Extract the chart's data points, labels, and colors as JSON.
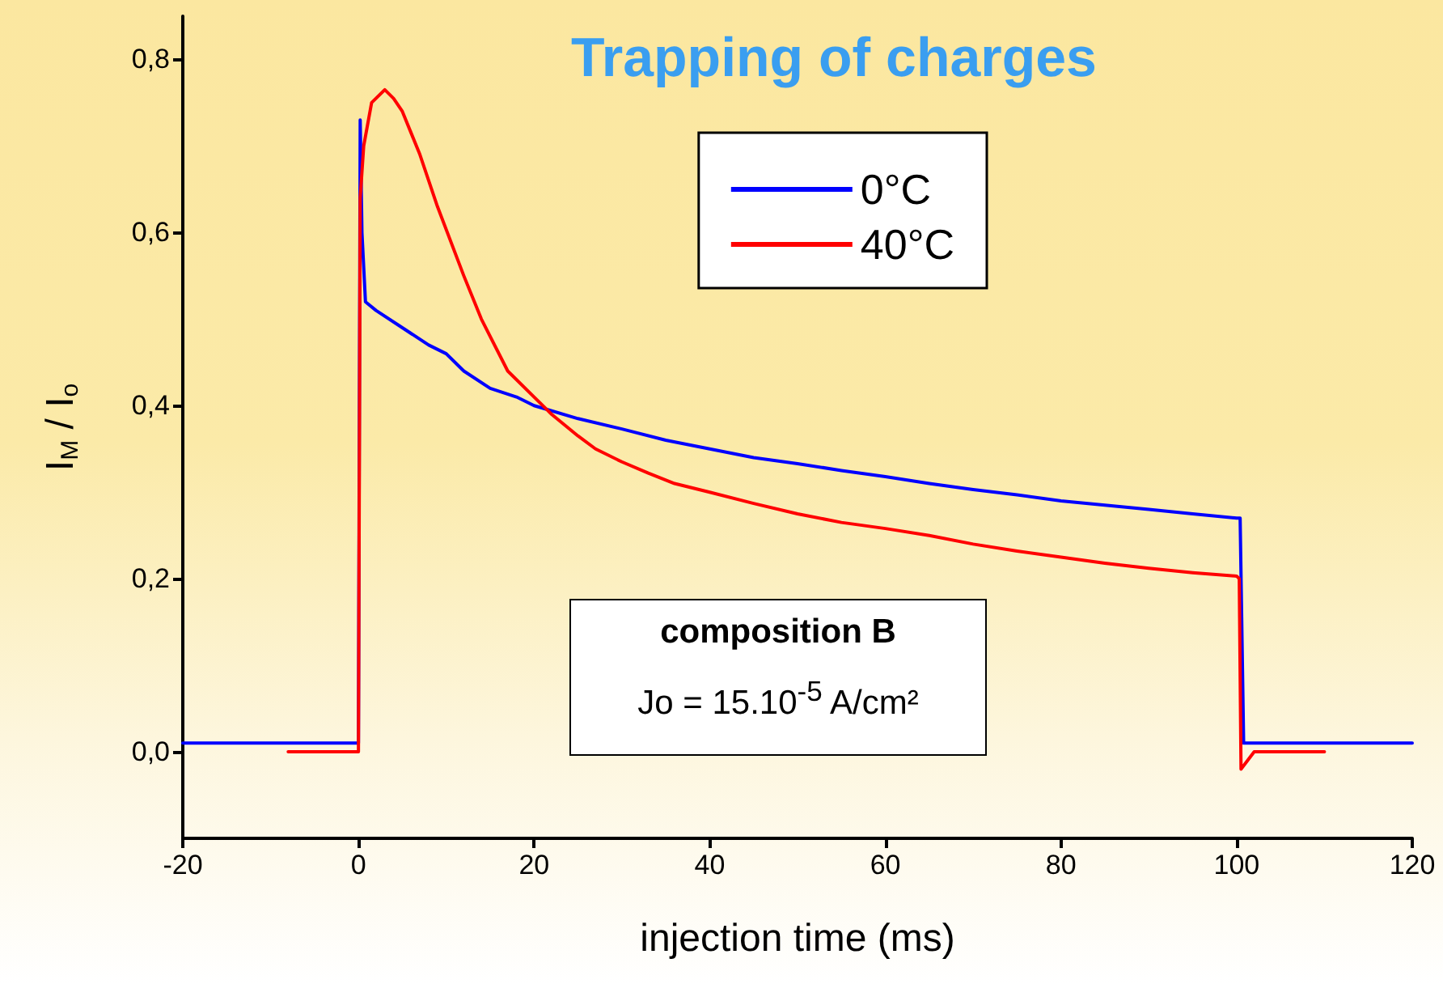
{
  "chart_data": {
    "type": "line",
    "title": "Trapping of charges",
    "xlabel": "injection time (ms)",
    "ylabel": "I$_{M}$ / I$_{o}$",
    "annotations": [
      "composition B",
      "Jo = 15.10$^{-5}$ A/cm²"
    ],
    "xlim": [
      -20,
      120
    ],
    "xticks": [
      -20,
      0,
      20,
      40,
      60,
      80,
      100,
      120
    ],
    "ylim": [
      -0.1,
      0.85
    ],
    "yticks": [
      {
        "value": 0,
        "label": "0,0"
      },
      {
        "value": 0.2,
        "label": "0,2"
      },
      {
        "value": 0.4,
        "label": "0,4"
      },
      {
        "value": 0.6,
        "label": "0,6"
      },
      {
        "value": 0.8,
        "label": "0,8"
      }
    ],
    "grid": false,
    "legend": "top right",
    "marker": "none",
    "line_style": "solid",
    "series": [
      {
        "name": "0°C",
        "color": "#0000ff",
        "x": [
          -20,
          -10,
          0,
          0.2,
          0.4,
          0.8,
          2,
          5,
          8,
          10,
          12,
          15,
          18,
          20,
          25,
          30,
          35,
          40,
          45,
          50,
          55,
          60,
          65,
          70,
          75,
          80,
          85,
          90,
          95,
          100,
          100.4,
          100.8,
          105,
          110,
          115,
          120
        ],
        "values": [
          0.01,
          0.01,
          0.01,
          0.73,
          0.6,
          0.52,
          0.51,
          0.49,
          0.47,
          0.46,
          0.44,
          0.42,
          0.41,
          0.4,
          0.385,
          0.373,
          0.36,
          0.35,
          0.34,
          0.333,
          0.325,
          0.318,
          0.31,
          0.303,
          0.297,
          0.29,
          0.285,
          0.28,
          0.275,
          0.27,
          0.27,
          0.01,
          0.01,
          0.01,
          0.01,
          0.01
        ]
      },
      {
        "name": "40°C",
        "color": "#ff0000",
        "x": [
          -8,
          -4,
          0,
          0.2,
          0.6,
          1.5,
          3,
          4,
          5,
          7,
          9,
          12,
          14,
          17,
          20,
          22,
          25,
          27,
          30,
          33,
          36,
          40,
          45,
          50,
          55,
          60,
          65,
          70,
          75,
          80,
          85,
          90,
          95,
          100,
          100.3,
          100.5,
          102,
          106,
          110
        ],
        "values": [
          0,
          0,
          0,
          0.64,
          0.7,
          0.75,
          0.765,
          0.755,
          0.74,
          0.69,
          0.63,
          0.55,
          0.5,
          0.44,
          0.41,
          0.39,
          0.365,
          0.35,
          0.335,
          0.322,
          0.31,
          0.3,
          0.287,
          0.275,
          0.265,
          0.258,
          0.25,
          0.24,
          0.232,
          0.225,
          0.218,
          0.212,
          0.207,
          0.203,
          0.2,
          -0.02,
          0,
          0,
          0
        ]
      }
    ]
  }
}
